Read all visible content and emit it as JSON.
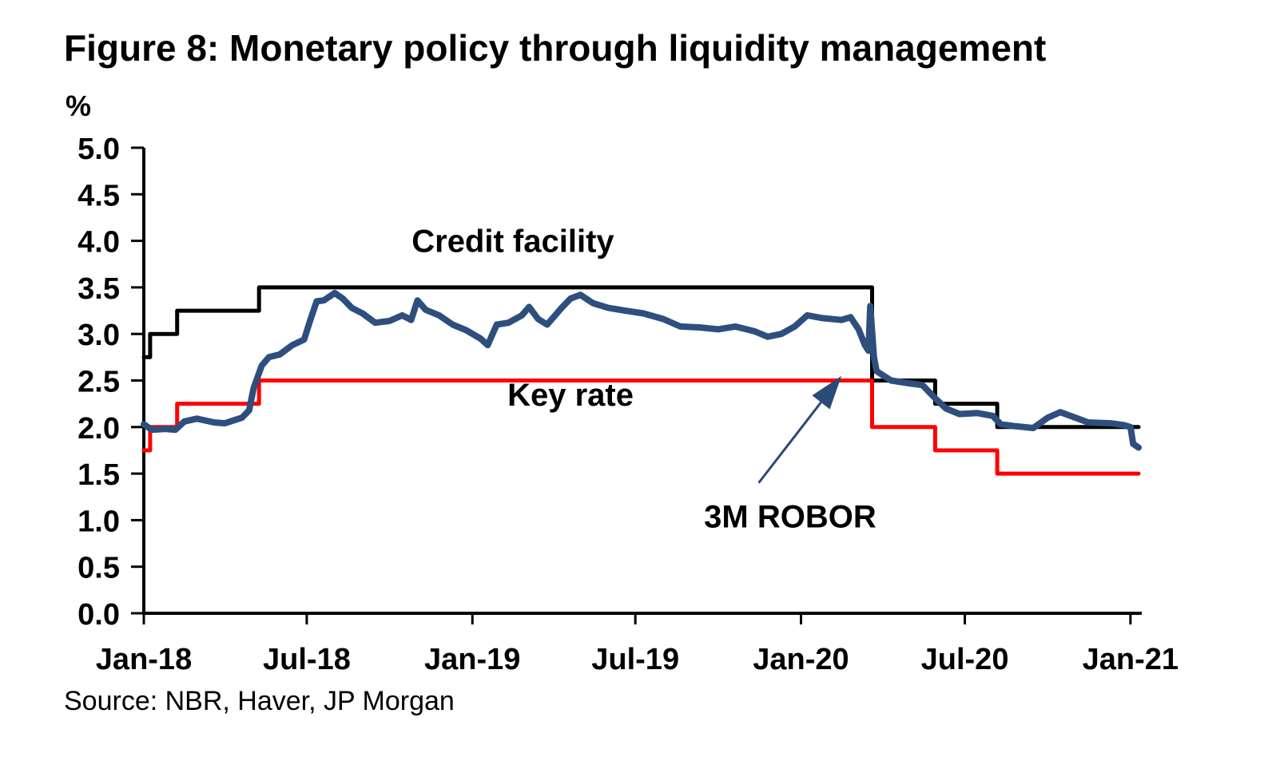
{
  "chart_data": {
    "type": "line",
    "title": "Figure 8: Monetary policy through liquidity management",
    "ylabel": "%",
    "xlabel": "",
    "source": "Source: NBR, Haver, JP Morgan",
    "ylim": [
      0,
      5
    ],
    "yticks": [
      "0.0",
      "0.5",
      "1.0",
      "1.5",
      "2.0",
      "2.5",
      "3.0",
      "3.5",
      "4.0",
      "4.5",
      "5.0"
    ],
    "xticks": [
      {
        "label": "Jan-18",
        "date": "2018-01-01"
      },
      {
        "label": "Jul-18",
        "date": "2018-07-01"
      },
      {
        "label": "Jan-19",
        "date": "2019-01-01"
      },
      {
        "label": "Jul-19",
        "date": "2019-07-01"
      },
      {
        "label": "Jan-20",
        "date": "2020-01-01"
      },
      {
        "label": "Jul-20",
        "date": "2020-07-01"
      },
      {
        "label": "Jan-21",
        "date": "2021-01-01"
      }
    ],
    "xlim": [
      "2018-01-01",
      "2021-01-10"
    ],
    "grid": false,
    "legend": "none",
    "series": [
      {
        "name": "Credit facility",
        "color": "#000000",
        "step": true,
        "points": [
          [
            "2018-01-01",
            2.75
          ],
          [
            "2018-01-08",
            3.0
          ],
          [
            "2018-02-07",
            3.25
          ],
          [
            "2018-05-09",
            3.5
          ],
          [
            "2020-03-20",
            2.5
          ],
          [
            "2020-05-29",
            2.25
          ],
          [
            "2020-08-06",
            2.0
          ],
          [
            "2021-01-10",
            2.0
          ]
        ]
      },
      {
        "name": "Key rate",
        "color": "#ff0000",
        "step": true,
        "points": [
          [
            "2018-01-01",
            1.75
          ],
          [
            "2018-01-08",
            2.0
          ],
          [
            "2018-02-07",
            2.25
          ],
          [
            "2018-05-09",
            2.5
          ],
          [
            "2020-03-20",
            2.0
          ],
          [
            "2020-05-29",
            1.75
          ],
          [
            "2020-08-06",
            1.5
          ],
          [
            "2021-01-10",
            1.5
          ]
        ]
      },
      {
        "name": "3M ROBOR",
        "color": "#2e4f7e",
        "step": false,
        "points": [
          [
            "2018-01-01",
            2.03
          ],
          [
            "2018-01-10",
            1.97
          ],
          [
            "2018-01-25",
            1.98
          ],
          [
            "2018-02-05",
            1.97
          ],
          [
            "2018-02-15",
            2.06
          ],
          [
            "2018-03-01",
            2.09
          ],
          [
            "2018-03-20",
            2.05
          ],
          [
            "2018-04-01",
            2.04
          ],
          [
            "2018-04-20",
            2.1
          ],
          [
            "2018-04-28",
            2.18
          ],
          [
            "2018-05-03",
            2.42
          ],
          [
            "2018-05-12",
            2.66
          ],
          [
            "2018-05-20",
            2.75
          ],
          [
            "2018-06-01",
            2.78
          ],
          [
            "2018-06-15",
            2.88
          ],
          [
            "2018-06-28",
            2.94
          ],
          [
            "2018-07-05",
            3.15
          ],
          [
            "2018-07-12",
            3.35
          ],
          [
            "2018-07-20",
            3.36
          ],
          [
            "2018-08-01",
            3.44
          ],
          [
            "2018-08-10",
            3.38
          ],
          [
            "2018-08-20",
            3.28
          ],
          [
            "2018-09-01",
            3.22
          ],
          [
            "2018-09-15",
            3.12
          ],
          [
            "2018-10-01",
            3.14
          ],
          [
            "2018-10-15",
            3.2
          ],
          [
            "2018-10-25",
            3.15
          ],
          [
            "2018-11-01",
            3.36
          ],
          [
            "2018-11-10",
            3.26
          ],
          [
            "2018-11-25",
            3.2
          ],
          [
            "2018-12-10",
            3.1
          ],
          [
            "2018-12-25",
            3.04
          ],
          [
            "2019-01-10",
            2.95
          ],
          [
            "2019-01-18",
            2.88
          ],
          [
            "2019-01-28",
            3.1
          ],
          [
            "2019-02-10",
            3.12
          ],
          [
            "2019-02-25",
            3.2
          ],
          [
            "2019-03-05",
            3.29
          ],
          [
            "2019-03-15",
            3.16
          ],
          [
            "2019-03-25",
            3.1
          ],
          [
            "2019-04-10",
            3.28
          ],
          [
            "2019-04-20",
            3.38
          ],
          [
            "2019-05-01",
            3.42
          ],
          [
            "2019-05-15",
            3.33
          ],
          [
            "2019-06-01",
            3.28
          ],
          [
            "2019-06-20",
            3.25
          ],
          [
            "2019-07-10",
            3.22
          ],
          [
            "2019-08-01",
            3.16
          ],
          [
            "2019-08-20",
            3.08
          ],
          [
            "2019-09-10",
            3.07
          ],
          [
            "2019-10-01",
            3.05
          ],
          [
            "2019-10-20",
            3.08
          ],
          [
            "2019-11-10",
            3.03
          ],
          [
            "2019-11-25",
            2.97
          ],
          [
            "2019-12-10",
            3.0
          ],
          [
            "2019-12-25",
            3.08
          ],
          [
            "2020-01-08",
            3.2
          ],
          [
            "2020-01-25",
            3.17
          ],
          [
            "2020-02-15",
            3.15
          ],
          [
            "2020-02-25",
            3.18
          ],
          [
            "2020-03-05",
            3.05
          ],
          [
            "2020-03-12",
            2.88
          ],
          [
            "2020-03-16",
            2.82
          ],
          [
            "2020-03-18",
            3.3
          ],
          [
            "2020-03-22",
            2.75
          ],
          [
            "2020-03-25",
            2.6
          ],
          [
            "2020-04-10",
            2.5
          ],
          [
            "2020-04-30",
            2.47
          ],
          [
            "2020-05-15",
            2.45
          ],
          [
            "2020-05-30",
            2.3
          ],
          [
            "2020-06-10",
            2.2
          ],
          [
            "2020-06-25",
            2.14
          ],
          [
            "2020-07-15",
            2.15
          ],
          [
            "2020-08-01",
            2.12
          ],
          [
            "2020-08-10",
            2.03
          ],
          [
            "2020-08-25",
            2.01
          ],
          [
            "2020-09-15",
            1.99
          ],
          [
            "2020-10-01",
            2.1
          ],
          [
            "2020-10-15",
            2.16
          ],
          [
            "2020-11-01",
            2.1
          ],
          [
            "2020-11-15",
            2.05
          ],
          [
            "2020-12-10",
            2.04
          ],
          [
            "2020-12-25",
            2.02
          ],
          [
            "2021-01-01",
            2.0
          ],
          [
            "2021-01-04",
            1.82
          ],
          [
            "2021-01-10",
            1.78
          ]
        ]
      }
    ],
    "annotations": [
      {
        "text": "Credit facility",
        "date": "2019-02-15",
        "value": 3.88
      },
      {
        "text": "Key rate",
        "date": "2019-04-20",
        "value": 2.23
      },
      {
        "text": "3M ROBOR",
        "date": "2019-12-20",
        "value": 0.92
      }
    ],
    "arrow": {
      "from_date": "2019-11-15",
      "from_value": 1.4,
      "to_date": "2020-02-15",
      "to_value": 2.55
    }
  }
}
